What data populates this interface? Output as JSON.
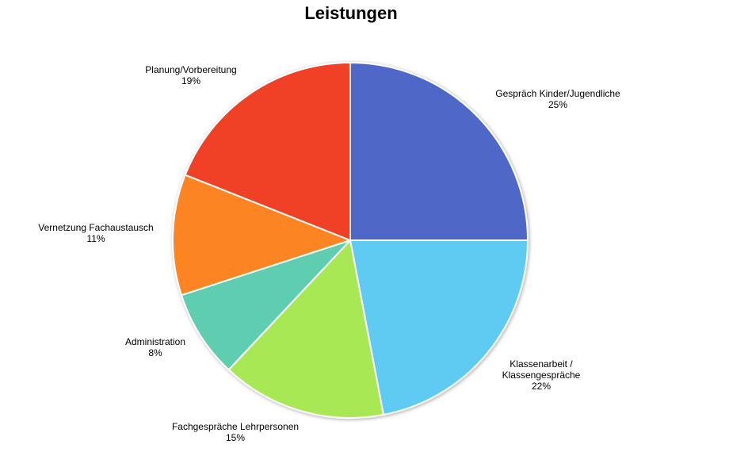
{
  "chart_data": {
    "type": "pie",
    "title": "Leistungen",
    "slices": [
      {
        "label": "Gespräch Kinder/Jugendliche",
        "label_lines": [
          "Gespräch Kinder/Jugendliche"
        ],
        "value": 25,
        "percent_label": "25%",
        "color": "#5068c8"
      },
      {
        "label": "Klassenarbeit / Klassengespräche",
        "label_lines": [
          "Klassenarbeit /",
          "Klassengespräche"
        ],
        "value": 22,
        "percent_label": "22%",
        "color": "#5fcaf2"
      },
      {
        "label": "Fachgespräche Lehrpersonen",
        "label_lines": [
          "Fachgespräche Lehrpersonen"
        ],
        "value": 15,
        "percent_label": "15%",
        "color": "#a8e854"
      },
      {
        "label": "Administration",
        "label_lines": [
          "Administration"
        ],
        "value": 8,
        "percent_label": "8%",
        "color": "#5ecdb0"
      },
      {
        "label": "Vernetzung Fachaustausch",
        "label_lines": [
          "Vernetzung Fachaustausch"
        ],
        "value": 11,
        "percent_label": "11%",
        "color": "#fd8421"
      },
      {
        "label": "Planung/Vorbereitung",
        "label_lines": [
          "Planung/Vorbereitung"
        ],
        "value": 19,
        "percent_label": "19%",
        "color": "#f04028"
      }
    ],
    "start": "top, clockwise",
    "legend": "none"
  }
}
